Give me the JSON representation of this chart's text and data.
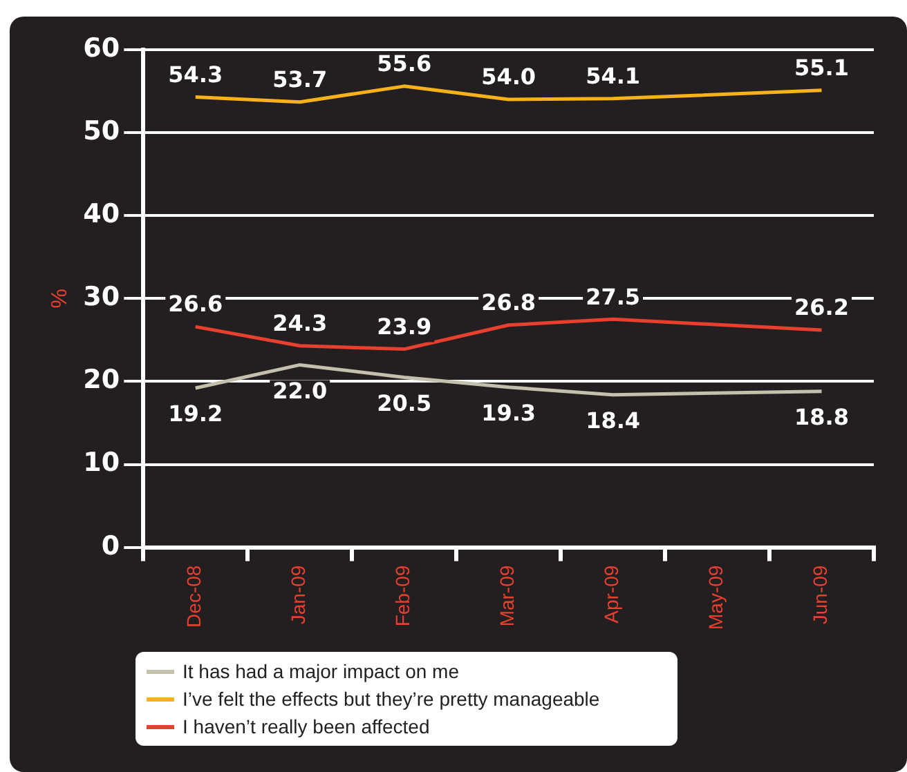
{
  "chart_data": {
    "type": "line",
    "ylabel": "%",
    "categories": [
      "Dec-08",
      "Jan-09",
      "Feb-09",
      "Mar-09",
      "Apr-09",
      "May-09",
      "Jun-09"
    ],
    "series": [
      {
        "name": "It has had a major impact on me",
        "color": "#c5bfae",
        "values": [
          19.2,
          22.0,
          20.5,
          19.3,
          18.4,
          null,
          18.8
        ],
        "value_labels": [
          "19.2",
          "22.0",
          "20.5",
          "19.3",
          "18.4",
          null,
          "18.8"
        ]
      },
      {
        "name": "I’ve felt the effects but they’re pretty manageable",
        "color": "#f7b21b",
        "values": [
          54.3,
          53.7,
          55.6,
          54.0,
          54.1,
          null,
          55.1
        ],
        "value_labels": [
          "54.3",
          "53.7",
          "55.6",
          "54.0",
          "54.1",
          null,
          "55.1"
        ]
      },
      {
        "name": "I haven’t really been affected",
        "color": "#e8402f",
        "values": [
          26.6,
          24.3,
          23.9,
          26.8,
          27.5,
          null,
          26.2
        ],
        "value_labels": [
          "26.6",
          "24.3",
          "23.9",
          "26.8",
          "27.5",
          null,
          "26.2"
        ]
      }
    ],
    "ylim": [
      0,
      60
    ],
    "yticks": [
      0,
      10,
      20,
      30,
      40,
      50,
      60
    ],
    "grid": "y",
    "legend": "bottom left",
    "marker": "none"
  }
}
